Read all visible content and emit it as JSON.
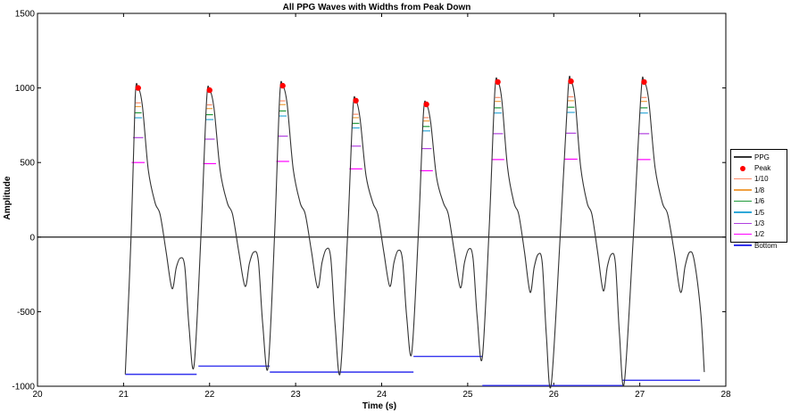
{
  "chart_data": {
    "type": "line",
    "title": "All PPG Waves with Widths from Peak Down",
    "xlabel": "Time (s)",
    "ylabel": "Amplitude",
    "xlim": [
      20,
      28
    ],
    "ylim": [
      -1000,
      1500
    ],
    "xticks": [
      "20",
      "21",
      "22",
      "23",
      "24",
      "25",
      "26",
      "27",
      "28"
    ],
    "yticks": [
      "-1000",
      "-500",
      "0",
      "500",
      "1000",
      "1500"
    ],
    "zero_line": 0,
    "grid": false,
    "legend_position": "right",
    "series_styles": [
      {
        "name": "PPG",
        "color": "#333333",
        "kind": "line"
      },
      {
        "name": "Peak",
        "color": "#ff0000",
        "kind": "marker"
      },
      {
        "name": "1/10",
        "color": "#ff8c69",
        "kind": "line"
      },
      {
        "name": "1/8",
        "color": "#f0a040",
        "kind": "line"
      },
      {
        "name": "1/6",
        "color": "#1f9a3a",
        "kind": "line"
      },
      {
        "name": "1/5",
        "color": "#2fa8d8",
        "kind": "line"
      },
      {
        "name": "1/3",
        "color": "#b040e0",
        "kind": "line"
      },
      {
        "name": "1/2",
        "color": "#ff00ff",
        "kind": "line"
      },
      {
        "name": "Bottom",
        "color": "#3333ee",
        "kind": "line"
      }
    ],
    "ppg_start": {
      "t": 21.02,
      "y": -920
    },
    "ppg_end": {
      "t": 27.75,
      "y": -905
    },
    "beats": [
      {
        "peak_t": 21.17,
        "peak_y": 1000,
        "min_t": 21.82,
        "min_y": -860,
        "notch_y": -345,
        "dia_y": -140
      },
      {
        "peak_t": 22.0,
        "peak_y": 985,
        "min_t": 22.68,
        "min_y": -870,
        "notch_y": -330,
        "dia_y": -100
      },
      {
        "peak_t": 22.85,
        "peak_y": 1015,
        "min_t": 23.52,
        "min_y": -905,
        "notch_y": -340,
        "dia_y": -80
      },
      {
        "peak_t": 23.7,
        "peak_y": 915,
        "min_t": 24.35,
        "min_y": -775,
        "notch_y": -330,
        "dia_y": -90
      },
      {
        "peak_t": 24.52,
        "peak_y": 890,
        "min_t": 25.17,
        "min_y": -805,
        "notch_y": -340,
        "dia_y": -80
      },
      {
        "peak_t": 25.35,
        "peak_y": 1040,
        "min_t": 25.97,
        "min_y": -990,
        "notch_y": -370,
        "dia_y": -115
      },
      {
        "peak_t": 26.2,
        "peak_y": 1045,
        "min_t": 26.82,
        "min_y": -975,
        "notch_y": -360,
        "dia_y": -115
      },
      {
        "peak_t": 27.05,
        "peak_y": 1040,
        "min_t": null,
        "min_y": null,
        "notch_y": -370,
        "dia_y": -100
      }
    ],
    "bottom_lines": [
      {
        "x1": 21.02,
        "x2": 21.85,
        "y": -920
      },
      {
        "x1": 21.87,
        "x2": 22.7,
        "y": -865
      },
      {
        "x1": 22.7,
        "x2": 24.37,
        "y": -905
      },
      {
        "x1": 24.37,
        "x2": 25.17,
        "y": -800
      },
      {
        "x1": 25.17,
        "x2": 26.8,
        "y": -995
      },
      {
        "x1": 26.8,
        "x2": 27.7,
        "y": -960
      }
    ]
  }
}
